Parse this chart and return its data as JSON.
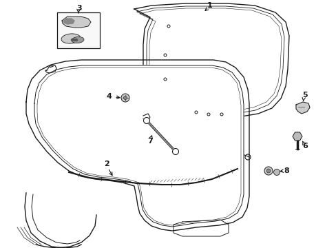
{
  "background_color": "#ffffff",
  "line_color": "#1a1a1a",
  "gray": "#aaaaaa",
  "dark_gray": "#666666",
  "light_gray": "#dddddd",
  "figsize": [
    4.89,
    3.6
  ],
  "dpi": 100
}
